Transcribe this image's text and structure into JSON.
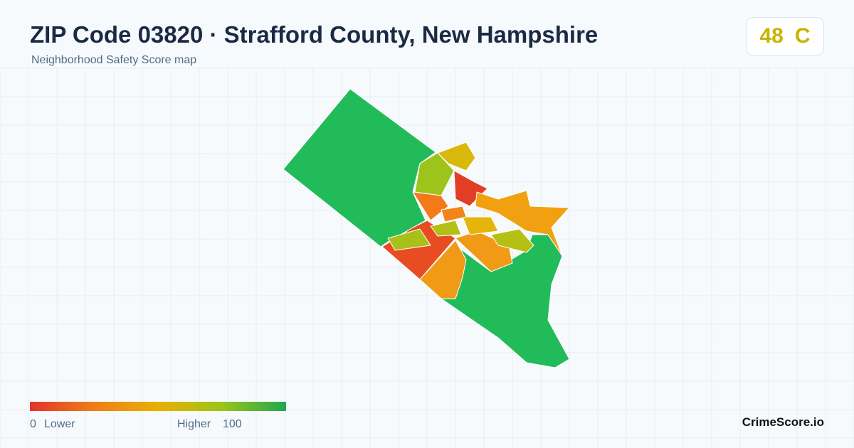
{
  "header": {
    "title": "ZIP Code 03820 · Strafford County, New Hampshire",
    "subtitle": "Neighborhood Safety Score map"
  },
  "score": {
    "value": "48",
    "grade": "C"
  },
  "legend": {
    "min": "0",
    "min_label": "Lower",
    "max_label": "Higher",
    "max": "100"
  },
  "brand": "CrimeScore.io"
}
